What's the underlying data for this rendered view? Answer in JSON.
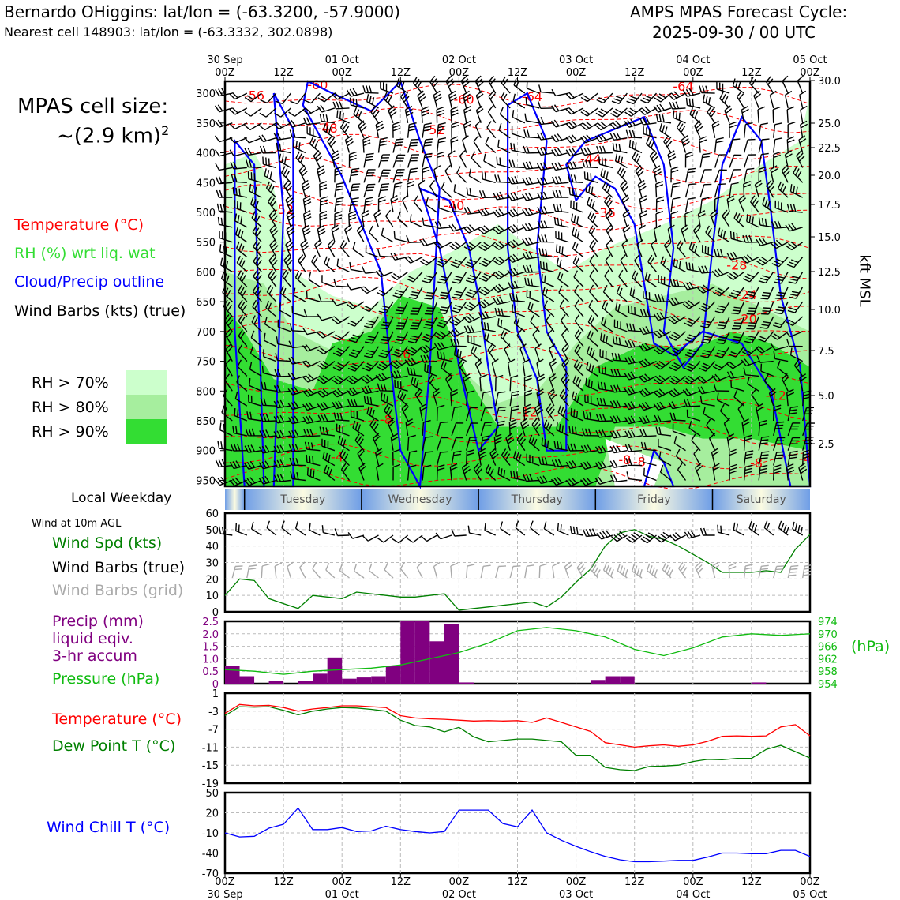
{
  "header": {
    "station": "Bernardo OHiggins: lat/lon = (-63.3200, -57.9000)",
    "nearest": "Nearest cell 148903: lat/lon = (-63.3332, 302.0898)",
    "forecast_line1": "AMPS MPAS Forecast Cycle:",
    "forecast_line2": "2025-09-30 / 00 UTC"
  },
  "cell_size": {
    "line1": "MPAS cell size:",
    "line2": "~(2.9 km)",
    "exp": "2"
  },
  "legend": {
    "temperature": "Temperature (°C)",
    "rh": "RH (%) wrt liq. wat",
    "cloud": "Cloud/Precip outline",
    "wind": "Wind Barbs (kts) (true)",
    "rh70": "RH > 70%",
    "rh80": "RH > 80%",
    "rh90": "RH > 90%"
  },
  "colors": {
    "temp": "#ff0000",
    "rh": "#33dd33",
    "cloud": "#0000ff",
    "wind": "#000000",
    "rh70": "#ccffcc",
    "rh80": "#a6ee9e",
    "rh90": "#33dd33",
    "precip": "#800080",
    "pressure": "#11bb11",
    "dew": "#008000",
    "chill": "#0000ff",
    "grid_barb": "#aaaaaa"
  },
  "panels": {
    "weekday_label": "Local Weekday",
    "weekdays": [
      "Tuesday",
      "Wednesday",
      "Thursday",
      "Friday",
      "Saturday"
    ],
    "wind10_title": "Wind at 10m AGL",
    "wind_spd": "Wind Spd (kts)",
    "wind_true": "Wind Barbs (true)",
    "wind_grid": "Wind Barbs (grid)",
    "precip1": "Precip (mm)",
    "precip2": "liquid eqiv.",
    "precip3": "3-hr accum",
    "pressure": "Pressure (hPa)",
    "hpa_unit": "(hPa)",
    "temp": "Temperature (°C)",
    "dew": "Dew Point T (°C)",
    "chill": "Wind Chill T (°C)",
    "kft": "kft MSL"
  },
  "axes": {
    "top_dates": [
      "30 Sep",
      "01 Oct",
      "02 Oct",
      "03 Oct",
      "04 Oct",
      "05 Oct"
    ],
    "hour_ticks": [
      "00Z",
      "12Z",
      "00Z",
      "12Z",
      "00Z",
      "12Z",
      "00Z",
      "12Z",
      "00Z",
      "12Z",
      "00Z"
    ],
    "bottom_dates": [
      "30 Sep",
      "01 Oct",
      "02 Oct",
      "03 Oct",
      "04 Oct",
      "05 Oct"
    ],
    "pressure_levels": [
      "300",
      "350",
      "400",
      "450",
      "500",
      "550",
      "600",
      "650",
      "700",
      "750",
      "800",
      "850",
      "900",
      "950"
    ],
    "kft_levels": [
      "30.0",
      "25.0",
      "22.5",
      "20.0",
      "17.5",
      "15.0",
      "12.5",
      "10.0",
      "7.5",
      "5.0",
      "2.5"
    ],
    "wind_ticks": [
      "60",
      "50",
      "40",
      "30",
      "20",
      "10",
      "0"
    ],
    "precip_ticks": [
      "2.5",
      "2.0",
      "1.5",
      "1.0",
      "0.5",
      "0"
    ],
    "pres_ticks": [
      "974",
      "970",
      "966",
      "962",
      "958",
      "954"
    ],
    "temp_ticks": [
      "1",
      "-3",
      "-7",
      "-11",
      "-15",
      "-19"
    ],
    "chill_ticks": [
      "50",
      "20",
      "-10",
      "-40",
      "-70"
    ]
  },
  "chart_data": [
    {
      "type": "line",
      "name": "temperature isotherm labels",
      "labels": [
        {
          "text": "-56",
          "t": 6,
          "p": 303
        },
        {
          "text": "-60",
          "t": 19,
          "p": 285
        },
        {
          "text": "-64",
          "t": 63,
          "p": 305
        },
        {
          "text": "-60",
          "t": 49,
          "p": 310
        },
        {
          "text": "-64",
          "t": 94,
          "p": 288
        },
        {
          "text": "-48",
          "t": 21,
          "p": 358
        },
        {
          "text": "-52",
          "t": 43,
          "p": 361
        },
        {
          "text": "-44",
          "t": 75,
          "p": 410
        },
        {
          "text": "-52",
          "t": 12,
          "p": 495
        },
        {
          "text": "-40",
          "t": 47,
          "p": 488
        },
        {
          "text": "-36",
          "t": 78,
          "p": 500
        },
        {
          "text": "-28",
          "t": 105,
          "p": 588
        },
        {
          "text": "-24",
          "t": 107,
          "p": 638
        },
        {
          "text": "-20",
          "t": 107,
          "p": 678
        },
        {
          "text": "-16",
          "t": 36,
          "p": 737
        },
        {
          "text": "-12",
          "t": 113,
          "p": 807
        },
        {
          "text": "-12",
          "t": 62,
          "p": 835
        },
        {
          "text": "-8",
          "t": 33,
          "p": 847
        },
        {
          "text": "-4",
          "t": 23,
          "p": 910
        },
        {
          "text": "-8",
          "t": 82,
          "p": 915
        },
        {
          "text": "-8",
          "t": 85,
          "p": 918
        },
        {
          "text": "-8",
          "t": 109,
          "p": 920
        },
        {
          "text": "-4",
          "t": 119,
          "p": 913
        }
      ]
    },
    {
      "type": "line",
      "name": "wind speed 10m",
      "x_hours": [
        0,
        3,
        6,
        9,
        12,
        15,
        18,
        21,
        24,
        27,
        30,
        33,
        36,
        39,
        42,
        45,
        48,
        51,
        54,
        57,
        60,
        63,
        66,
        69,
        72,
        75,
        78,
        81,
        84,
        87,
        90,
        93,
        96,
        99,
        102,
        105,
        108,
        111,
        114,
        117,
        120
      ],
      "values": [
        10,
        20,
        19,
        8,
        5,
        2,
        10,
        9,
        8,
        12,
        11,
        10,
        9,
        9,
        10,
        11,
        1,
        2,
        3,
        4,
        5,
        6,
        3,
        9,
        18,
        26,
        40,
        48,
        50,
        46,
        44,
        40,
        35,
        30,
        24,
        24,
        24,
        25,
        24,
        38,
        47
      ],
      "ylim": [
        0,
        60
      ]
    },
    {
      "type": "bar",
      "name": "precip 3-hr",
      "x_hours": [
        0,
        3,
        6,
        9,
        12,
        15,
        18,
        21,
        24,
        27,
        30,
        33,
        36,
        39,
        42,
        45,
        48,
        51,
        54,
        57,
        60,
        63,
        66,
        69,
        72,
        75,
        78,
        81,
        84,
        87,
        90,
        93,
        96,
        99,
        102,
        105,
        108,
        111,
        114,
        117
      ],
      "values": [
        0.7,
        0.3,
        0,
        0.1,
        0,
        0.1,
        0.4,
        1.05,
        0.2,
        0.25,
        0.3,
        0.7,
        2.5,
        2.5,
        1.7,
        2.4,
        0.05,
        0,
        0,
        0,
        0,
        0,
        0,
        0,
        0,
        0.15,
        0.3,
        0.3,
        0,
        0,
        0,
        0,
        0,
        0,
        0,
        0,
        0.05,
        0,
        0,
        0
      ],
      "ylim": [
        0,
        2.5
      ]
    },
    {
      "type": "line",
      "name": "pressure",
      "x_hours": [
        0,
        6,
        12,
        18,
        24,
        30,
        36,
        42,
        48,
        54,
        60,
        66,
        72,
        78,
        84,
        90,
        96,
        102,
        108,
        114,
        120
      ],
      "values": [
        958.5,
        958,
        957,
        958,
        958.5,
        959,
        960,
        962,
        964,
        967,
        971,
        972,
        971,
        969,
        965,
        963,
        965.5,
        969,
        970,
        969.5,
        970
      ],
      "ylim": [
        954,
        974
      ]
    },
    {
      "type": "line",
      "name": "temperature 2m",
      "x_hours": [
        0,
        3,
        6,
        9,
        12,
        15,
        18,
        21,
        24,
        27,
        30,
        33,
        36,
        39,
        42,
        45,
        48,
        51,
        54,
        57,
        60,
        63,
        66,
        69,
        72,
        75,
        78,
        81,
        84,
        87,
        90,
        93,
        96,
        99,
        102,
        105,
        108,
        111,
        114,
        117,
        120
      ],
      "values": [
        -3.5,
        -1.5,
        -1.8,
        -1.7,
        -2.2,
        -3,
        -2.5,
        -2.2,
        -1.8,
        -1.8,
        -2,
        -2.2,
        -4,
        -4.5,
        -4.7,
        -4.8,
        -5,
        -5.2,
        -5.1,
        -5.2,
        -5.1,
        -5.5,
        -4.5,
        -5.5,
        -6.5,
        -7.5,
        -10,
        -10.5,
        -11,
        -10.7,
        -10.5,
        -10.8,
        -10.5,
        -9.7,
        -8.6,
        -8.5,
        -8.6,
        -8.5,
        -6.5,
        -6,
        -8.5
      ],
      "ylim": [
        -19,
        1
      ]
    },
    {
      "type": "line",
      "name": "dew point 2m",
      "x_hours": [
        0,
        3,
        6,
        9,
        12,
        15,
        18,
        21,
        24,
        27,
        30,
        33,
        36,
        39,
        42,
        45,
        48,
        51,
        54,
        57,
        60,
        63,
        66,
        69,
        72,
        75,
        78,
        81,
        84,
        87,
        90,
        93,
        96,
        99,
        102,
        105,
        108,
        111,
        114,
        117,
        120
      ],
      "values": [
        -4,
        -2,
        -2.1,
        -2,
        -2.8,
        -3.8,
        -3,
        -2.5,
        -2.2,
        -2.3,
        -2.6,
        -3,
        -5,
        -6.2,
        -6.5,
        -7.6,
        -6.6,
        -8.7,
        -9.8,
        -9.5,
        -9.2,
        -9.2,
        -9.5,
        -9.8,
        -12.8,
        -12.8,
        -15.5,
        -16,
        -16.2,
        -15.3,
        -15.2,
        -15,
        -14.2,
        -13.7,
        -13.8,
        -13.5,
        -13.5,
        -11.5,
        -10.6,
        -12,
        -13.4
      ],
      "ylim": [
        -19,
        1
      ]
    },
    {
      "type": "line",
      "name": "wind chill",
      "x_hours": [
        0,
        3,
        6,
        9,
        12,
        15,
        18,
        21,
        24,
        27,
        30,
        33,
        36,
        39,
        42,
        45,
        48,
        51,
        54,
        57,
        60,
        63,
        66,
        69,
        72,
        75,
        78,
        81,
        84,
        87,
        90,
        93,
        96,
        99,
        102,
        105,
        108,
        111,
        114,
        117,
        120
      ],
      "values": [
        -10,
        -16,
        -15,
        -3,
        3,
        27,
        -5,
        -5,
        -2,
        -8,
        -7,
        0,
        -5,
        -8,
        -10,
        -8,
        24,
        24,
        24,
        4,
        -1,
        24,
        -10,
        -21,
        -30,
        -38,
        -45,
        -50,
        -53,
        -53,
        -52,
        -51,
        -51,
        -46,
        -40,
        -40,
        -41,
        -41,
        -36,
        -36,
        -45
      ],
      "ylim": [
        -70,
        50
      ]
    }
  ]
}
